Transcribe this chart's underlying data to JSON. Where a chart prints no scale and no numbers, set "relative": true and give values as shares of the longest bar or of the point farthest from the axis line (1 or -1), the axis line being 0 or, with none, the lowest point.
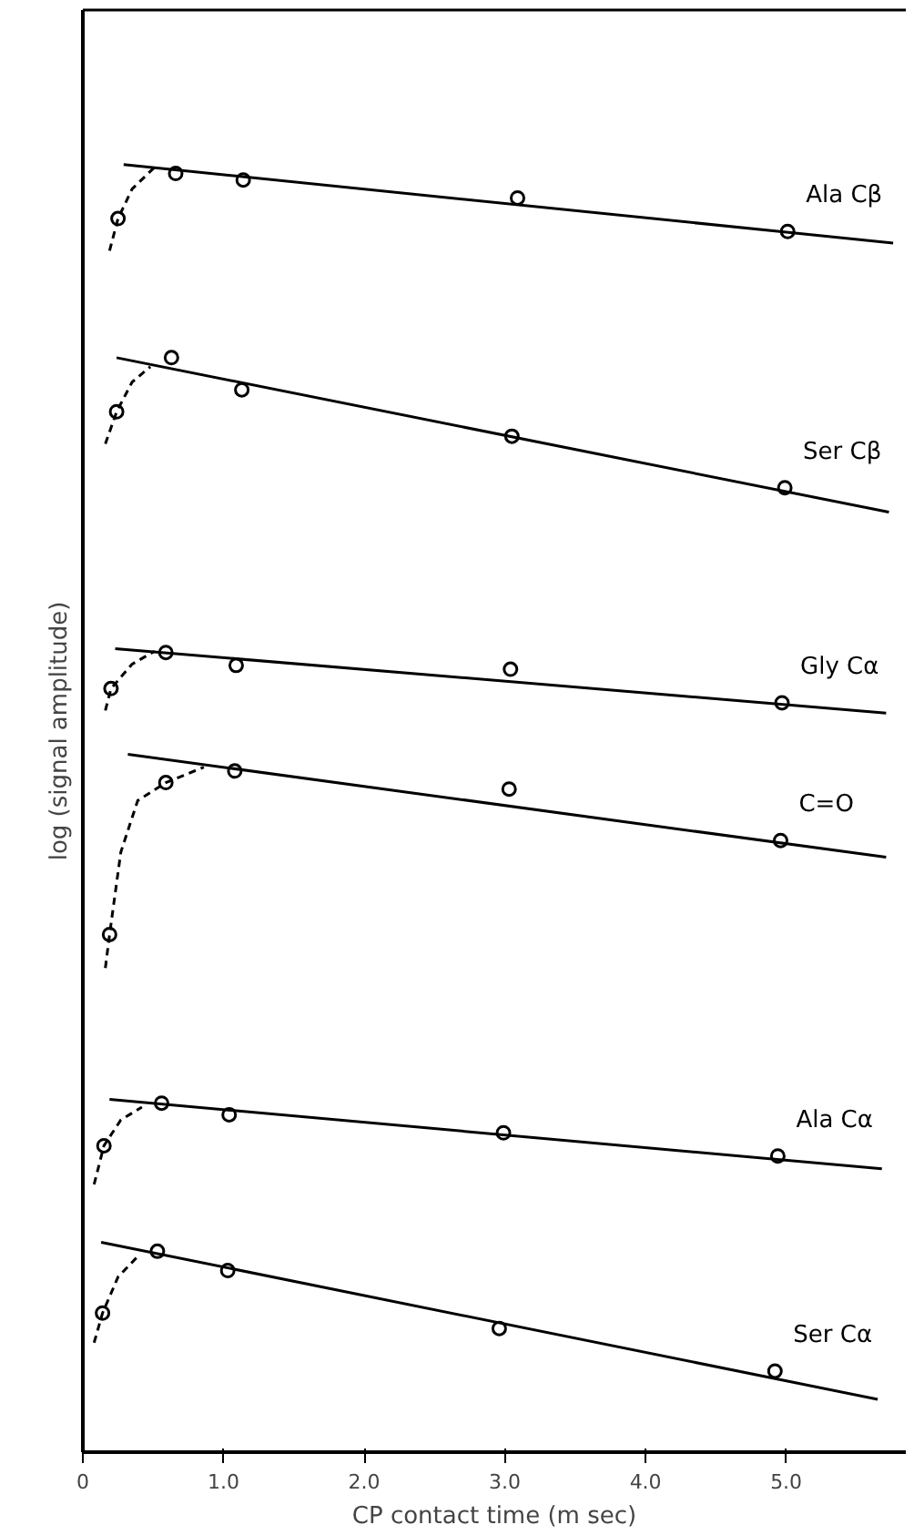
{
  "chart_data": {
    "type": "scatter",
    "relative": true,
    "xlabel": "CP contact time (m sec)",
    "ylabel": "log (signal amplitude)",
    "xlim": [
      0,
      5.85
    ],
    "xticks": [
      0,
      {
        "value": 1,
        "label": "1.0"
      },
      {
        "value": 2,
        "label": "2.0"
      },
      {
        "value": 3,
        "label": "3.0"
      },
      {
        "value": 4,
        "label": "4.0"
      },
      {
        "value": 5,
        "label": "5.0"
      }
    ],
    "tick_labels": "x",
    "grid": false,
    "series": [
      {
        "name": "Ala Cβ",
        "marker": "circle",
        "color": "#000000",
        "x": [
          0.25,
          0.66,
          1.14,
          3.09,
          5.01
        ],
        "values": [
          0.958,
          0.993,
          0.988,
          0.974,
          0.948
        ]
      },
      {
        "type": "line",
        "marker": "none",
        "line_style": "solid",
        "color": "#000000",
        "x": [
          0.29,
          5.76
        ],
        "values": [
          1.0,
          0.939
        ]
      },
      {
        "type": "line",
        "marker": "none",
        "line_style": "dashed",
        "color": "#000000",
        "x": [
          0.19,
          0.25,
          0.35,
          0.52
        ],
        "values": [
          0.933,
          0.958,
          0.981,
          0.999
        ]
      },
      {
        "name": "Ser Cβ",
        "marker": "circle",
        "color": "#000000",
        "x": [
          0.24,
          0.63,
          1.13,
          3.05,
          4.99
        ],
        "values": [
          0.808,
          0.85,
          0.825,
          0.789,
          0.749
        ]
      },
      {
        "type": "line",
        "marker": "none",
        "line_style": "solid",
        "color": "#000000",
        "x": [
          0.24,
          5.73
        ],
        "values": [
          0.85,
          0.73
        ]
      },
      {
        "type": "line",
        "marker": "none",
        "line_style": "dashed",
        "color": "#000000",
        "x": [
          0.16,
          0.24,
          0.35,
          0.48
        ],
        "values": [
          0.783,
          0.808,
          0.831,
          0.843
        ]
      },
      {
        "name": "Gly Cα",
        "marker": "circle",
        "color": "#000000",
        "x": [
          0.2,
          0.59,
          1.09,
          3.04,
          4.97
        ],
        "values": [
          0.593,
          0.621,
          0.611,
          0.608,
          0.582
        ]
      },
      {
        "type": "line",
        "marker": "none",
        "line_style": "solid",
        "color": "#000000",
        "x": [
          0.23,
          5.71
        ],
        "values": [
          0.624,
          0.574
        ]
      },
      {
        "type": "line",
        "marker": "none",
        "line_style": "dashed",
        "color": "#000000",
        "x": [
          0.16,
          0.2,
          0.35,
          0.51
        ],
        "values": [
          0.576,
          0.593,
          0.612,
          0.622
        ]
      },
      {
        "name": "C=O",
        "marker": "circle",
        "color": "#000000",
        "x": [
          0.19,
          0.59,
          1.08,
          3.03,
          4.96
        ],
        "values": [
          0.402,
          0.52,
          0.529,
          0.515,
          0.475
        ]
      },
      {
        "type": "line",
        "marker": "none",
        "line_style": "solid",
        "color": "#000000",
        "x": [
          0.32,
          5.71
        ],
        "values": [
          0.542,
          0.462
        ]
      },
      {
        "type": "line",
        "marker": "none",
        "line_style": "dashed",
        "color": "#000000",
        "x": [
          0.16,
          0.19,
          0.27,
          0.39,
          0.59,
          0.86
        ],
        "values": [
          0.376,
          0.402,
          0.466,
          0.506,
          0.52,
          0.532
        ]
      },
      {
        "name": "Ala Cα",
        "marker": "circle",
        "color": "#000000",
        "x": [
          0.15,
          0.56,
          1.04,
          2.99,
          4.94
        ],
        "values": [
          0.238,
          0.271,
          0.262,
          0.248,
          0.23
        ]
      },
      {
        "type": "line",
        "marker": "none",
        "line_style": "solid",
        "color": "#000000",
        "x": [
          0.19,
          5.68
        ],
        "values": [
          0.274,
          0.22
        ]
      },
      {
        "type": "line",
        "marker": "none",
        "line_style": "dashed",
        "color": "#000000",
        "x": [
          0.08,
          0.15,
          0.27,
          0.42
        ],
        "values": [
          0.208,
          0.238,
          0.258,
          0.268
        ]
      },
      {
        "name": "Ser Cα",
        "marker": "circle",
        "color": "#000000",
        "x": [
          0.14,
          0.53,
          1.03,
          2.96,
          4.92
        ],
        "values": [
          0.108,
          0.156,
          0.141,
          0.096,
          0.063
        ]
      },
      {
        "type": "line",
        "marker": "none",
        "line_style": "solid",
        "color": "#000000",
        "x": [
          0.13,
          5.65
        ],
        "values": [
          0.163,
          0.041
        ]
      },
      {
        "type": "line",
        "marker": "none",
        "line_style": "dashed",
        "color": "#000000",
        "x": [
          0.08,
          0.14,
          0.25,
          0.39
        ],
        "values": [
          0.085,
          0.108,
          0.136,
          0.152
        ]
      }
    ]
  }
}
